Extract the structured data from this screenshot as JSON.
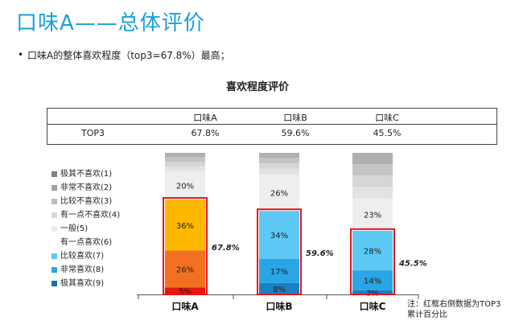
{
  "header": {
    "title": "口味A——总体评价",
    "bullet": "•",
    "summary": "口味A的整体喜欢程度（top3=67.8%）最高；"
  },
  "chart_data": {
    "type": "bar",
    "stacked": true,
    "title": "喜欢程度评价",
    "categories": [
      "口味A",
      "口味B",
      "口味C"
    ],
    "table": {
      "row_label": "TOP3",
      "values": [
        "67.8%",
        "59.6%",
        "45.5%"
      ]
    },
    "series": [
      {
        "name": "极其喜欢(9)",
        "color": "#e8140f",
        "values": [
          5,
          8,
          3
        ]
      },
      {
        "name": "非常喜欢(8)",
        "color": "#f37021",
        "values": [
          26,
          17,
          14
        ]
      },
      {
        "name": "比较喜欢(7)",
        "color": "#ffb800",
        "values": [
          36,
          34,
          28
        ]
      },
      {
        "name": "有一点喜欢(6)",
        "color": "#ffffff",
        "values": [
          null,
          null,
          null
        ]
      },
      {
        "name": "一般(5)",
        "color": "#f0f0f0",
        "values": [
          20,
          26,
          23
        ]
      },
      {
        "name": "有一点不喜欢(4)",
        "color": "#d8d8d8",
        "values": [
          null,
          null,
          null
        ]
      },
      {
        "name": "比较不喜欢(3)",
        "color": "#bdbdbd",
        "values": [
          null,
          null,
          null
        ]
      },
      {
        "name": "非常不喜欢(2)",
        "color": "#a2a2a2",
        "values": [
          null,
          null,
          null
        ]
      },
      {
        "name": "极其不喜欢(1)",
        "color": "#7f7f7f",
        "values": [
          null,
          null,
          null
        ]
      }
    ],
    "bar_value_labels": {
      "极其喜欢(9)": [
        "5%",
        "8%",
        "3%"
      ],
      "非常喜欢(8)": [
        "26%",
        "17%",
        "14%"
      ],
      "比较喜欢(7)": [
        "36%",
        "34%",
        "28%"
      ],
      "一般(5)": [
        "20%",
        "26%",
        "23%"
      ]
    },
    "top3_labels": [
      "67.8%",
      "59.6%",
      "45.5%"
    ],
    "top_colors_by_category": {
      "口味A": [
        "#e8140f",
        "#f37021",
        "#ffb800"
      ],
      "口味B": [
        "#1b7fc2",
        "#2aa5e6",
        "#5ec8f5"
      ],
      "口味C": [
        "#1b7fc2",
        "#2aa5e6",
        "#5ec8f5"
      ]
    },
    "legend": [
      {
        "label": "极其不喜欢(1)",
        "color": "#7f7f7f"
      },
      {
        "label": "非常不喜欢(2)",
        "color": "#a2a2a2"
      },
      {
        "label": "比较不喜欢(3)",
        "color": "#bdbdbd"
      },
      {
        "label": "有一点不喜欢(4)",
        "color": "#d8d8d8"
      },
      {
        "label": "一般(5)",
        "color": "#ececec"
      },
      {
        "label": "有一点喜欢(6)",
        "color": "#ffffff"
      },
      {
        "label": "比较喜欢(7)",
        "color": "#5ec8f5"
      },
      {
        "label": "非常喜欢(8)",
        "color": "#2aa5e6"
      },
      {
        "label": "极其喜欢(9)",
        "color": "#1b6fb0"
      }
    ],
    "highlight_color": "#e8141f",
    "ylim": [
      0,
      100
    ]
  },
  "note": {
    "line1": "注：红框右侧数据为TOP3",
    "line2": "累计百分比"
  }
}
